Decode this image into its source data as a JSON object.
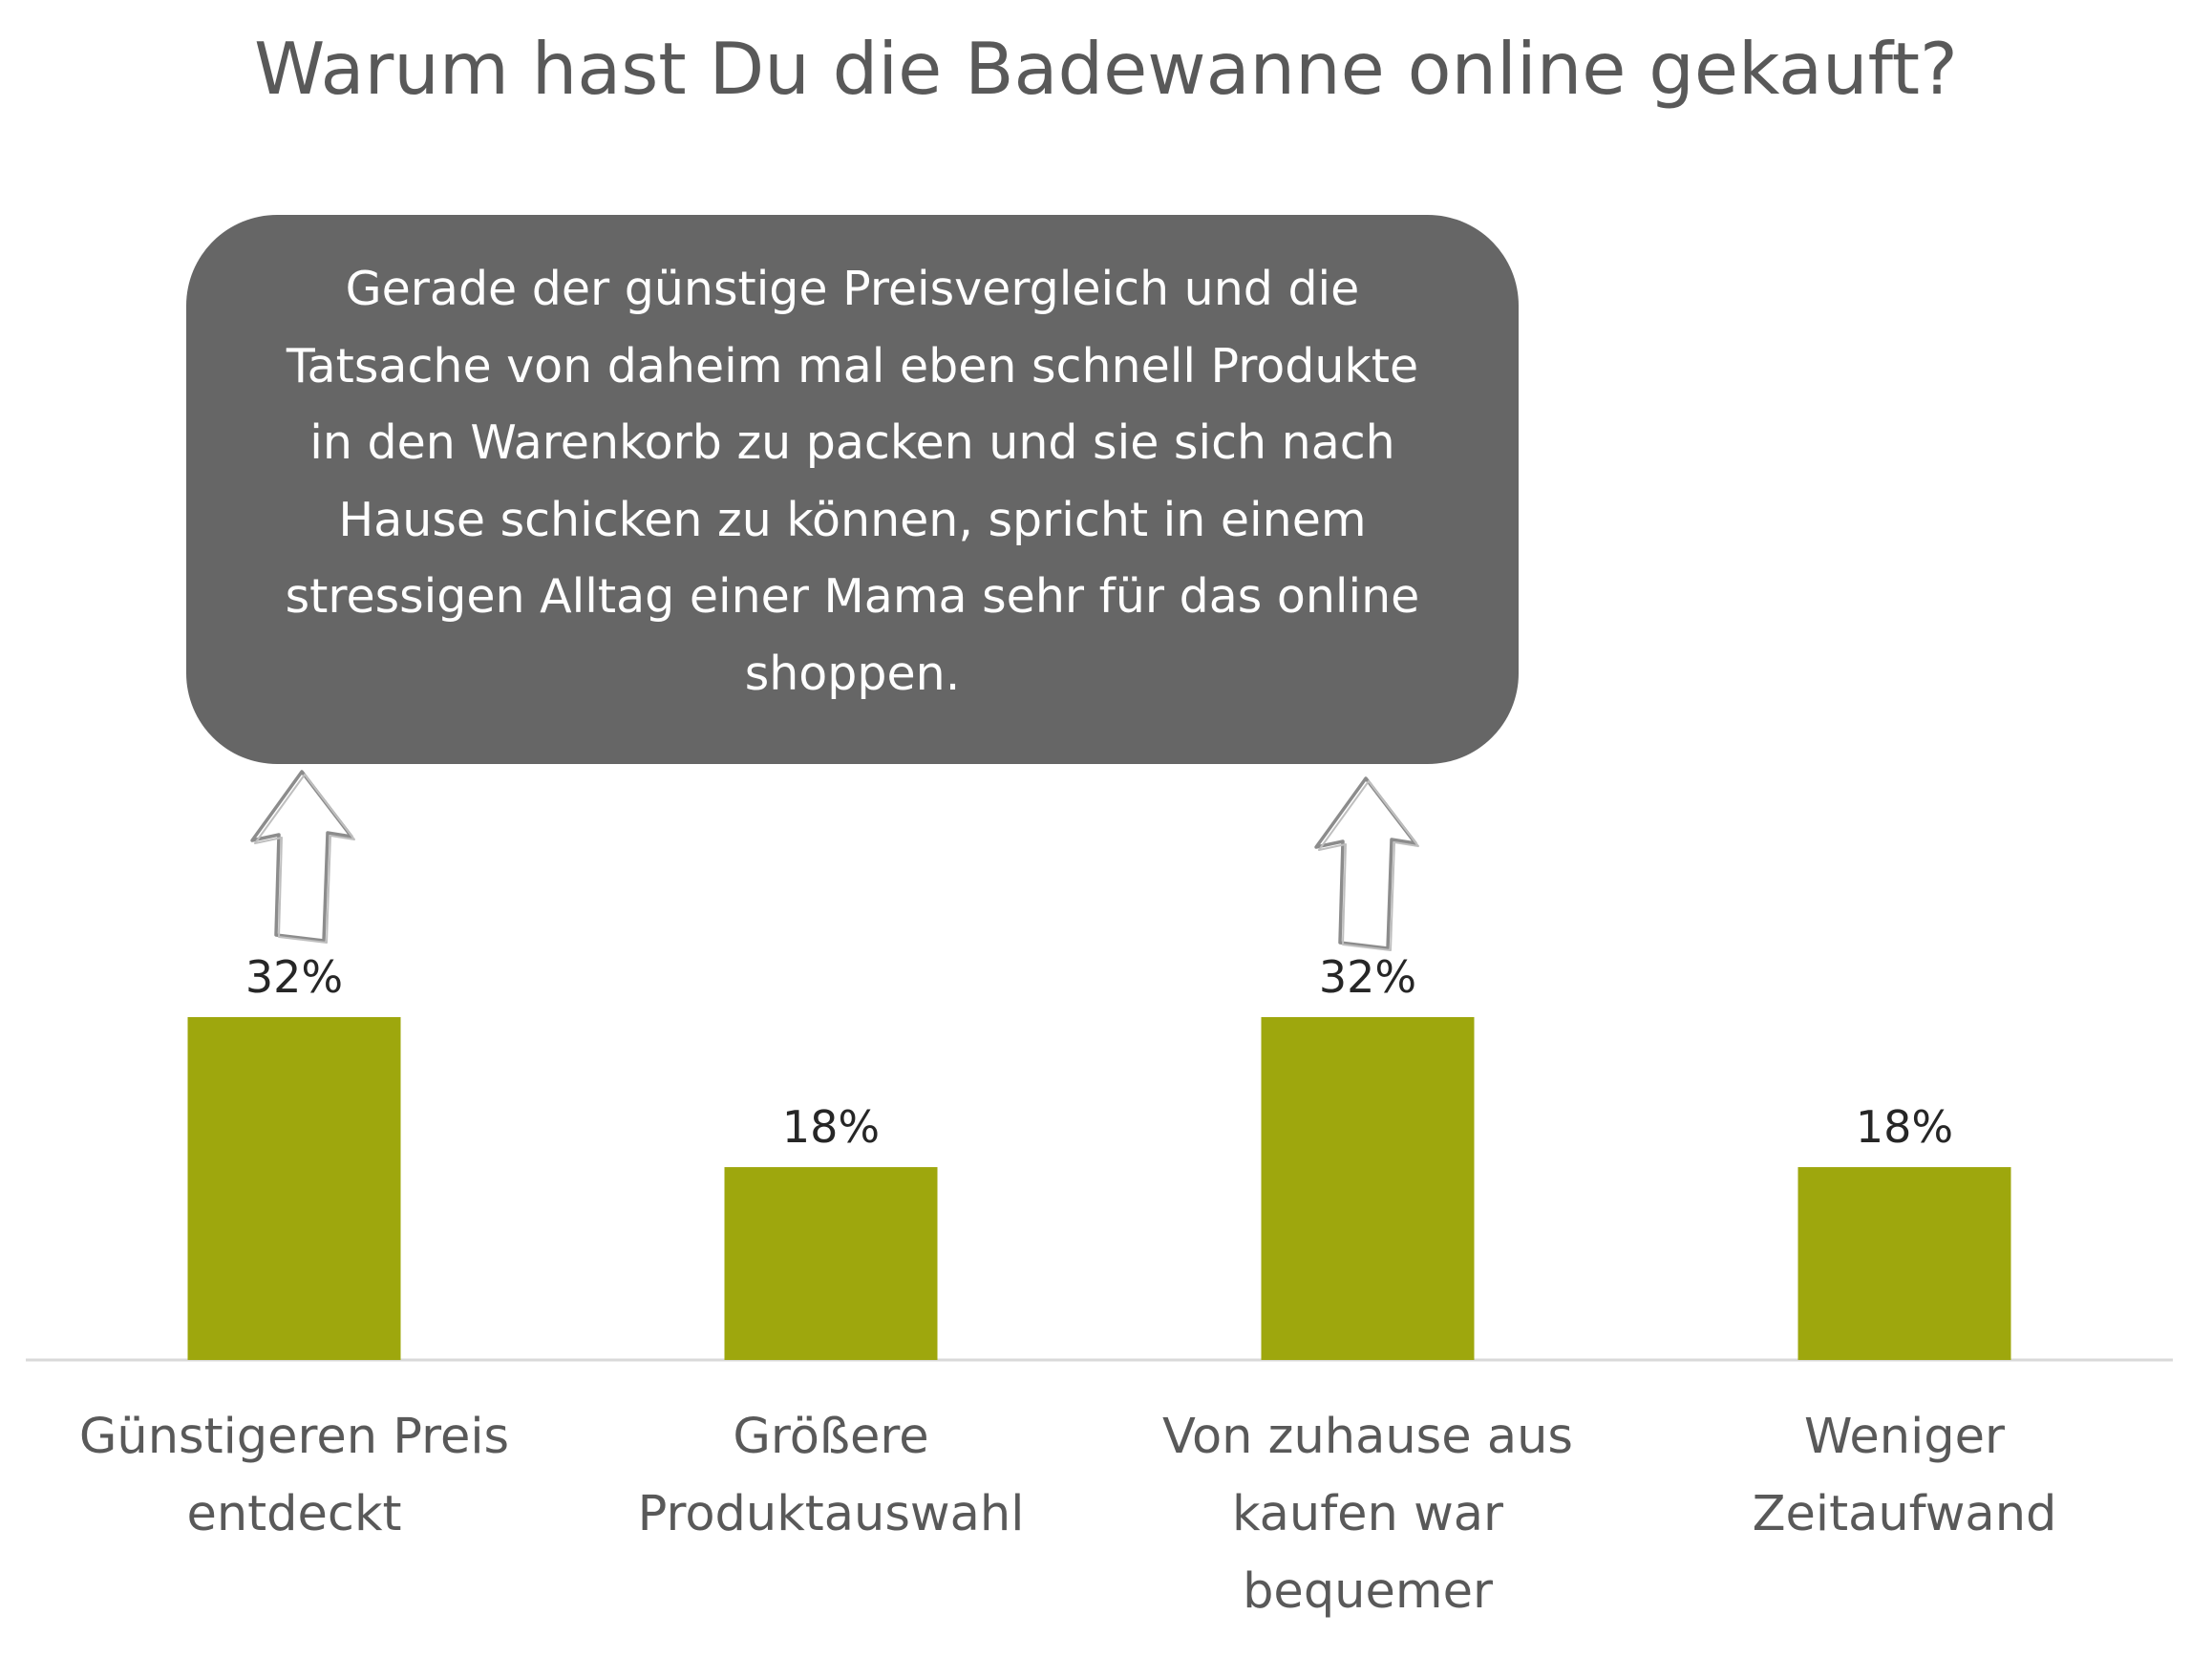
{
  "chart_data": {
    "type": "bar",
    "title": "Warum hast Du die Badewanne online gekauft?",
    "categories": [
      "Günstigeren Preis entdeckt",
      "Größere Produktauswahl",
      "Von zuhause aus kaufen war bequemer",
      "Weniger Zeitaufwand"
    ],
    "category_lines": [
      [
        "Günstigeren Preis",
        "entdeckt"
      ],
      [
        "Größere",
        "Produktauswahl"
      ],
      [
        "Von zuhause aus",
        "kaufen war",
        "bequemer"
      ],
      [
        "Weniger",
        "Zeitaufwand"
      ]
    ],
    "values": [
      32,
      18,
      32,
      18
    ],
    "data_labels": [
      "32%",
      "18%",
      "32%",
      "18%"
    ],
    "value_unit": "%",
    "ylim": [
      0,
      32
    ],
    "grid": false,
    "legend": "none",
    "bar_color": "#9EA70D",
    "annotation": {
      "text": "Gerade der günstige Preisvergleich und die Tatsache von daheim mal eben schnell Produkte in den Warenkorb zu packen und sie sich nach Hause schicken zu können, spricht in einem stressigen Alltag einer Mama sehr für das online shoppen.",
      "lines": [
        "Gerade der günstige Preisvergleich und die",
        "Tatsache von daheim mal eben schnell Produkte",
        "in den Warenkorb zu packen und sie sich nach",
        "Hause schicken zu können, spricht in einem",
        "stressigen Alltag einer Mama sehr für das online",
        "shoppen."
      ],
      "points_to_categories": [
        0,
        2
      ],
      "box_color": "#666666",
      "text_color": "#FFFFFF"
    }
  }
}
